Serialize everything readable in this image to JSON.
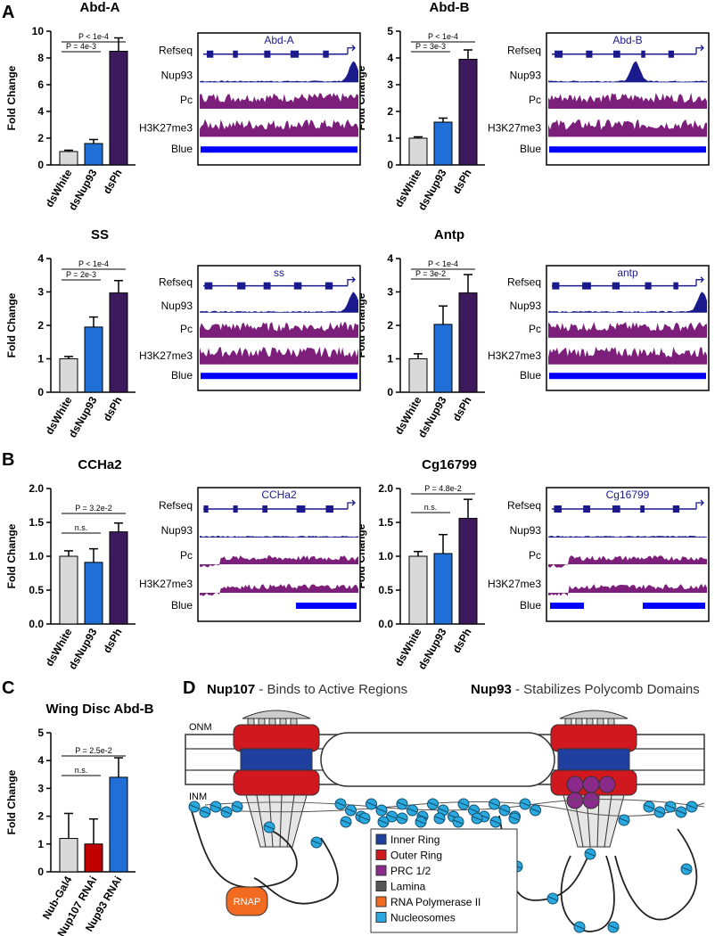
{
  "panels": [
    "A",
    "B",
    "C",
    "D"
  ],
  "chart_data": [
    {
      "type": "bar",
      "title": "Abd-A",
      "ylabel": "Fold Change",
      "categories": [
        "dsWhite",
        "dsNup93",
        "dsPh"
      ],
      "values": [
        1,
        1.6,
        8.5
      ],
      "errors": [
        0.1,
        0.3,
        1.0
      ],
      "colors": [
        "#d9d9d9",
        "#1f6fd6",
        "#3d1a5e"
      ],
      "ylim": [
        0,
        10
      ],
      "yticks": [
        0,
        2,
        4,
        6,
        8,
        10
      ],
      "annotations": [
        "P < 1e-4",
        "P = 4e-3"
      ]
    },
    {
      "type": "bar",
      "title": "Abd-B",
      "ylabel": "Fold Change",
      "categories": [
        "dsWhite",
        "dsNup93",
        "dsPh"
      ],
      "values": [
        1,
        1.6,
        3.95
      ],
      "errors": [
        0.05,
        0.15,
        0.35
      ],
      "colors": [
        "#d9d9d9",
        "#1f6fd6",
        "#3d1a5e"
      ],
      "ylim": [
        0,
        5
      ],
      "yticks": [
        0,
        1,
        2,
        3,
        4,
        5
      ],
      "annotations": [
        "P < 1e-4",
        "P = 3e-3"
      ]
    },
    {
      "type": "bar",
      "title": "SS",
      "ylabel": "Fold Change",
      "categories": [
        "dsWhite",
        "dsNup93",
        "dsPh"
      ],
      "values": [
        1,
        1.95,
        2.97
      ],
      "errors": [
        0.07,
        0.3,
        0.37
      ],
      "colors": [
        "#d9d9d9",
        "#1f6fd6",
        "#3d1a5e"
      ],
      "ylim": [
        0,
        4
      ],
      "yticks": [
        0,
        1,
        2,
        3,
        4
      ],
      "annotations": [
        "P < 1e-4",
        "P = 2e-3"
      ]
    },
    {
      "type": "bar",
      "title": "Antp",
      "ylabel": "Fold Change",
      "categories": [
        "dsWhite",
        "dsNup93",
        "dsPh"
      ],
      "values": [
        1,
        2.03,
        2.97
      ],
      "errors": [
        0.15,
        0.55,
        0.55
      ],
      "colors": [
        "#d9d9d9",
        "#1f6fd6",
        "#3d1a5e"
      ],
      "ylim": [
        0,
        4
      ],
      "yticks": [
        0,
        1,
        2,
        3,
        4
      ],
      "annotations": [
        "P < 1e-4",
        "P = 3e-2"
      ]
    },
    {
      "type": "bar",
      "title": "CCHa2",
      "ylabel": "Fold Change",
      "categories": [
        "dsWhite",
        "dsNup93",
        "dsPh"
      ],
      "values": [
        1.0,
        0.91,
        1.36
      ],
      "errors": [
        0.08,
        0.2,
        0.13
      ],
      "colors": [
        "#d9d9d9",
        "#1f6fd6",
        "#3d1a5e"
      ],
      "ylim": [
        0,
        2
      ],
      "yticks": [
        {
          "value": 0,
          "label": "0.0"
        },
        {
          "value": 0.5,
          "label": "0.5"
        },
        {
          "value": 1,
          "label": "1.0"
        },
        {
          "value": 1.5,
          "label": "1.5"
        },
        {
          "value": 2,
          "label": "2.0"
        }
      ],
      "annotations": [
        "P = 3.2e-2",
        "n.s."
      ]
    },
    {
      "type": "bar",
      "title": "Cg16799",
      "ylabel": "Fold Change",
      "categories": [
        "dsWhite",
        "dsNup93",
        "dsPh"
      ],
      "values": [
        1.0,
        1.04,
        1.56
      ],
      "errors": [
        0.07,
        0.28,
        0.28
      ],
      "colors": [
        "#d9d9d9",
        "#1f6fd6",
        "#3d1a5e"
      ],
      "ylim": [
        0,
        2
      ],
      "yticks": [
        {
          "value": 0,
          "label": "0.0"
        },
        {
          "value": 0.5,
          "label": "0.5"
        },
        {
          "value": 1,
          "label": "1.0"
        },
        {
          "value": 1.5,
          "label": "1.5"
        },
        {
          "value": 2,
          "label": "2.0"
        }
      ],
      "annotations": [
        "P = 4.8e-2",
        "n.s."
      ]
    },
    {
      "type": "bar",
      "title": "Wing Disc Abd-B",
      "ylabel": "Fold Change",
      "categories": [
        "Nub-Gal4",
        "Nup107 RNAi",
        "Nup93 RNAi"
      ],
      "values": [
        1.2,
        1.0,
        3.4
      ],
      "errors": [
        0.9,
        0.9,
        0.7
      ],
      "colors": [
        "#d9d9d9",
        "#c00000",
        "#1f6fd6"
      ],
      "ylim": [
        0,
        5
      ],
      "yticks": [
        0,
        1,
        2,
        3,
        4,
        5
      ],
      "annotations": [
        "P = 2.5e-2",
        "n.s."
      ]
    }
  ],
  "tracks": [
    {
      "gene": "Abd-A",
      "labels": [
        "Refseq",
        "Nup93",
        "Pc",
        "H3K27me3",
        "Blue"
      ]
    },
    {
      "gene": "Abd-B",
      "labels": [
        "Refseq",
        "Nup93",
        "Pc",
        "H3K27me3",
        "Blue"
      ]
    },
    {
      "gene": "ss",
      "labels": [
        "Refseq",
        "Nup93",
        "Pc",
        "H3K27me3",
        "Blue"
      ]
    },
    {
      "gene": "antp",
      "labels": [
        "Refseq",
        "Nup93",
        "Pc",
        "H3K27me3",
        "Blue"
      ]
    },
    {
      "gene": "CCHa2",
      "labels": [
        "Refseq",
        "Nup93",
        "Pc",
        "H3K27me3",
        "Blue"
      ]
    },
    {
      "gene": "Cg16799",
      "labels": [
        "Refseq",
        "Nup93",
        "Pc",
        "H3K27me3",
        "Blue"
      ]
    }
  ],
  "diagram": {
    "left_bold": "Nup107",
    "left_text": " - Binds to Active Regions",
    "right_bold": "Nup93",
    "right_text": " - Stabilizes Polycomb Domains",
    "onm": "ONM",
    "inm": "INM",
    "rnap": "RNAP",
    "legend": [
      {
        "label": "Inner Ring",
        "color": "#1f3f9f"
      },
      {
        "label": "Outer Ring",
        "color": "#d0181e"
      },
      {
        "label": "PRC 1/2",
        "color": "#8a2a8a"
      },
      {
        "label": "Lamina",
        "color": "#555555"
      },
      {
        "label": "RNA Polymerase II",
        "color": "#f26b21"
      },
      {
        "label": "Nucleosomes",
        "color": "#29a9e0"
      }
    ]
  }
}
